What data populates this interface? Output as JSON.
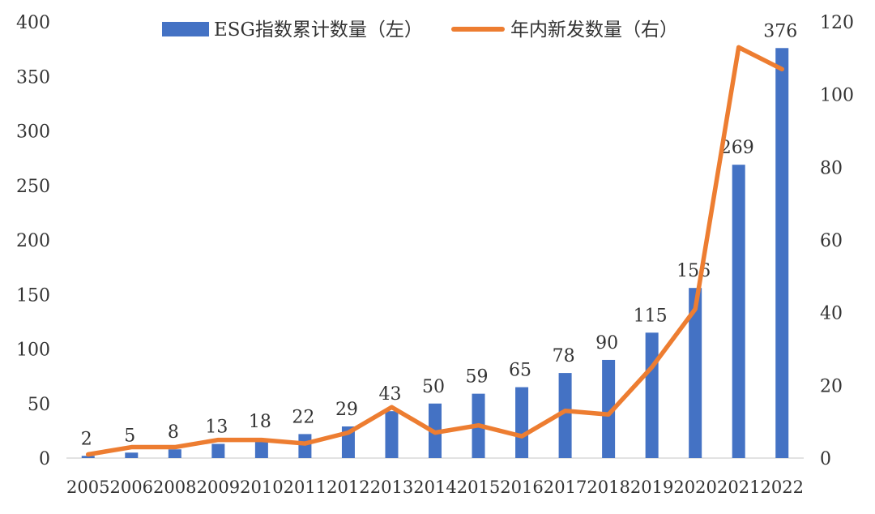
{
  "chart_data": {
    "type": "bar",
    "title": "",
    "xlabel": "",
    "ylabel_left": "",
    "ylabel_right": "",
    "categories": [
      "2005",
      "2006",
      "2008",
      "2009",
      "2010",
      "2011",
      "2012",
      "2013",
      "2014",
      "2015",
      "2016",
      "2017",
      "2018",
      "2019",
      "2020",
      "2021",
      "2022"
    ],
    "ylim_left": [
      0,
      400
    ],
    "yticks_left": [
      0,
      50,
      100,
      150,
      200,
      250,
      300,
      350,
      400
    ],
    "ylim_right": [
      0,
      120
    ],
    "yticks_right": [
      0,
      20,
      40,
      60,
      80,
      100,
      120
    ],
    "grid": false,
    "legend_position": "top",
    "series": [
      {
        "name": "ESG指数累计数量（左）",
        "type": "bar",
        "axis": "left",
        "color": "#4472C4",
        "values": [
          2,
          5,
          8,
          13,
          18,
          22,
          29,
          43,
          50,
          59,
          65,
          78,
          90,
          115,
          156,
          269,
          376
        ],
        "labels": [
          "2",
          "5",
          "8",
          "13",
          "18",
          "22",
          "29",
          "43",
          "50",
          "59",
          "65",
          "78",
          "90",
          "115",
          "156",
          "269",
          "376"
        ]
      },
      {
        "name": "年内新发数量（右）",
        "type": "line",
        "axis": "right",
        "color": "#ED7D31",
        "values": [
          1,
          3,
          3,
          5,
          5,
          4,
          7,
          14,
          7,
          9,
          6,
          13,
          12,
          25,
          41,
          113,
          107
        ]
      }
    ]
  }
}
